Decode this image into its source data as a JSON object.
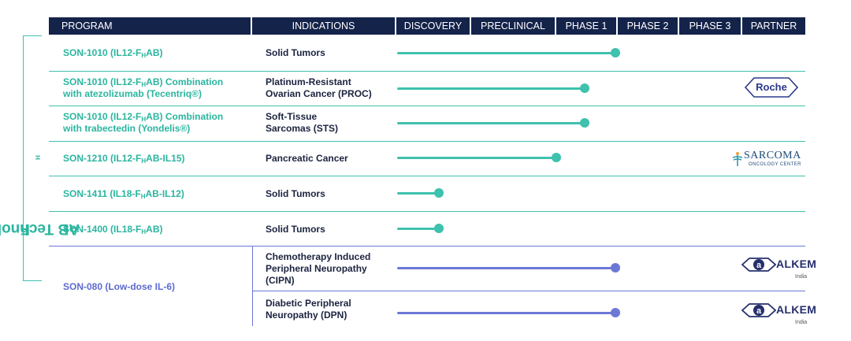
{
  "header": {
    "program": "PROGRAM",
    "indications": "INDICATIONS",
    "discovery": "DISCOVERY",
    "preclinical": "PRECLINICAL",
    "phase1": "PHASE 1",
    "phase2": "PHASE 2",
    "phase3": "PHASE 3",
    "partner": "PARTNER"
  },
  "group_label": {
    "prefix": "F",
    "sub": "H",
    "suffix": "AB Technology"
  },
  "rows": [
    {
      "program": [
        {
          "t": "SON-1010 (IL12-F"
        },
        {
          "s": "H"
        },
        {
          "t": "AB)"
        }
      ],
      "indication": [
        "Solid Tumors"
      ],
      "stage_progress": "end of Phase 1",
      "partner": ""
    },
    {
      "program": [
        {
          "t": "SON-1010 (IL12-F"
        },
        {
          "s": "H"
        },
        {
          "t": "AB) Combination"
        },
        {
          "br": true
        },
        {
          "t": "with atezolizumab (Tecentriq®)"
        }
      ],
      "indication": [
        "Platinum-Resistant",
        "Ovarian Cancer (PROC)"
      ],
      "stage_progress": "mid Phase 1",
      "partner": "Roche"
    },
    {
      "program": [
        {
          "t": "SON-1010 (IL12-F"
        },
        {
          "s": "H"
        },
        {
          "t": "AB) Combination"
        },
        {
          "br": true
        },
        {
          "t": "with trabectedin (Yondelis®)"
        }
      ],
      "indication": [
        "Soft-Tissue",
        "Sarcomas (STS)"
      ],
      "stage_progress": "mid Phase 1",
      "partner": ""
    },
    {
      "program": [
        {
          "t": "SON-1210 (IL12-F"
        },
        {
          "s": "H"
        },
        {
          "t": "AB-IL15)"
        }
      ],
      "indication": [
        "Pancreatic Cancer"
      ],
      "stage_progress": "early Phase 1",
      "partner": "Sarcoma Oncology Center"
    },
    {
      "program": [
        {
          "t": "SON-1411 (IL18-F"
        },
        {
          "s": "H"
        },
        {
          "t": "AB-IL12)"
        }
      ],
      "indication": [
        "Solid Tumors"
      ],
      "stage_progress": "Discovery",
      "partner": ""
    },
    {
      "program": [
        {
          "t": "SON-1400 (IL18-F"
        },
        {
          "s": "H"
        },
        {
          "t": "AB)"
        }
      ],
      "indication": [
        "Solid Tumors"
      ],
      "stage_progress": "Discovery",
      "partner": ""
    }
  ],
  "son080": {
    "program": "SON-080 (Low-dose IL-6)",
    "indications": [
      {
        "lines": [
          "Chemotherapy Induced",
          "Peripheral Neuropathy",
          "(CIPN)"
        ],
        "stage_progress": "end of Phase 1",
        "partner": "Alkem"
      },
      {
        "lines": [
          "Diabetic Peripheral",
          "Neuropathy (DPN)"
        ],
        "stage_progress": "end of Phase 1",
        "partner": "Alkem"
      }
    ]
  },
  "partners": {
    "roche": "Roche",
    "sarcoma_name": "SARCOMA",
    "sarcoma_sub": "ONCOLOGY CENTER",
    "alkem_name": "ALKEM",
    "alkem_sub": "India"
  },
  "colors": {
    "header_bg": "#14234a",
    "teal": "#3ec1ad",
    "teal_text": "#2ab59f",
    "blue": "#6b78d6",
    "blue_text": "#5d6ad0"
  }
}
